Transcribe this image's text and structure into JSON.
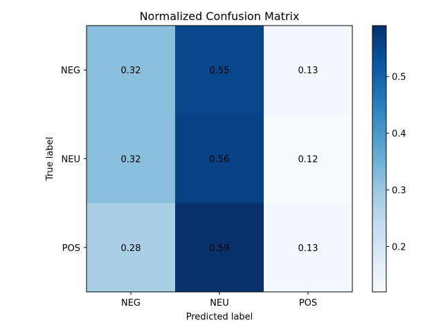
{
  "chart_data": {
    "type": "heatmap",
    "title": "Normalized Confusion Matrix",
    "xlabel": "Predicted label",
    "ylabel": "True label",
    "x_categories": [
      "NEG",
      "NEU",
      "POS"
    ],
    "y_categories": [
      "NEG",
      "NEU",
      "POS"
    ],
    "values": [
      [
        0.32,
        0.55,
        0.13
      ],
      [
        0.32,
        0.56,
        0.12
      ],
      [
        0.28,
        0.59,
        0.13
      ]
    ],
    "labels": [
      [
        "0.32",
        "0.55",
        "0.13"
      ],
      [
        "0.32",
        "0.56",
        "0.12"
      ],
      [
        "0.28",
        "0.59",
        "0.13"
      ]
    ],
    "colormap": "Blues",
    "color_range": [
      0.12,
      0.59
    ],
    "colorbar": {
      "ticks": [
        0.2,
        0.3,
        0.4,
        0.5
      ],
      "tick_labels": [
        "0.2",
        "0.3",
        "0.4",
        "0.5"
      ]
    },
    "text_colors": {
      "dark": "#08306b",
      "light": "#ffffff"
    }
  }
}
